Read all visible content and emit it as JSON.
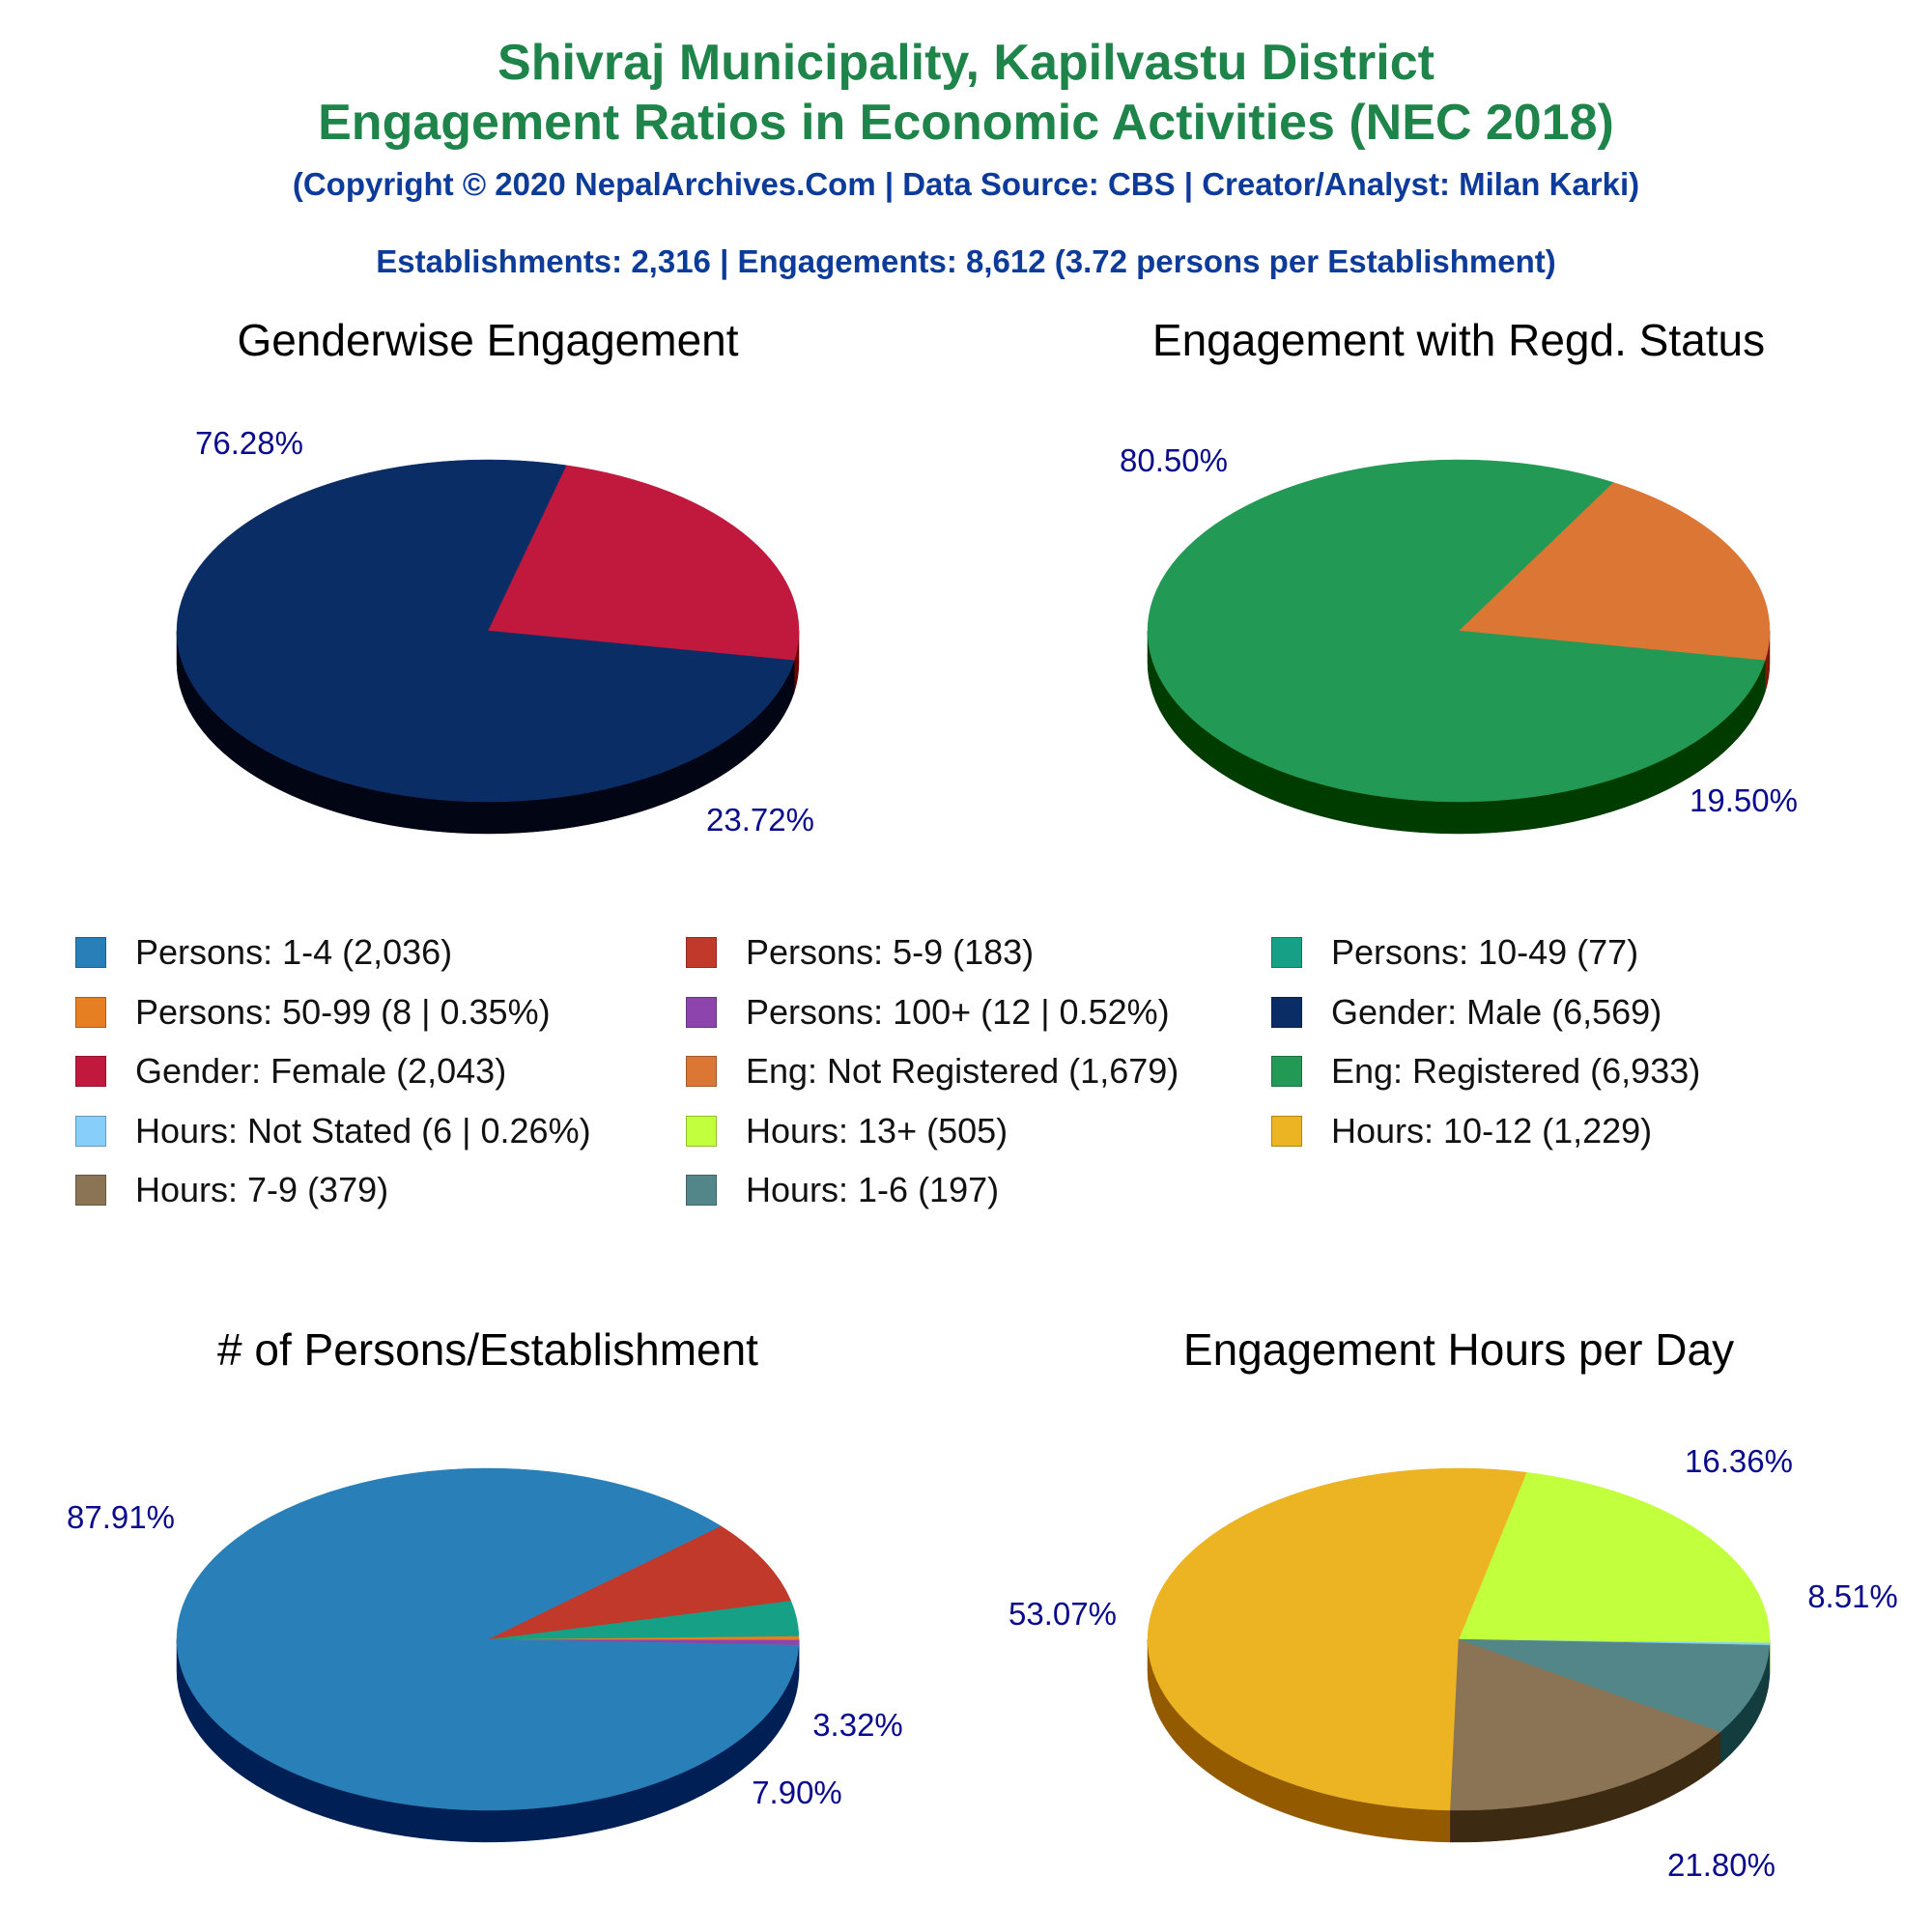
{
  "header": {
    "title_line1": "Shivraj Municipality, Kapilvastu District",
    "title_line2": "Engagement Ratios in Economic Activities (NEC 2018)",
    "subtitle": "(Copyright © 2020 NepalArchives.Com | Data Source: CBS | Creator/Analyst: Milan Karki)",
    "summary": "Establishments: 2,316 | Engagements: 8,612 (3.72 persons per Establishment)"
  },
  "chart_data": [
    {
      "type": "pie",
      "title": "Genderwise Engagement",
      "slices": [
        {
          "category": "Gender: Female",
          "count": 2043,
          "percent": 23.72,
          "label": "23.72%",
          "color": "#c0193d",
          "side": "#6b0000"
        },
        {
          "category": "Gender: Male",
          "count": 6569,
          "percent": 76.28,
          "label": "76.28%",
          "color": "#0b2d66",
          "side": "#020513"
        }
      ]
    },
    {
      "type": "pie",
      "title": "Engagement with Regd. Status",
      "slices": [
        {
          "category": "Eng: Not Registered",
          "count": 1679,
          "percent": 19.5,
          "label": "19.50%",
          "color": "#dc7635",
          "side": "#7b1a00"
        },
        {
          "category": "Eng: Registered",
          "count": 6933,
          "percent": 80.5,
          "label": "80.50%",
          "color": "#229954",
          "side": "#003b00"
        }
      ]
    },
    {
      "type": "pie",
      "title": "# of Persons/Establishment",
      "slices": [
        {
          "category": "Persons: 100+",
          "count": 12,
          "percent": 0.52,
          "label": "",
          "color": "#8e44ad",
          "side": "#3d0a55"
        },
        {
          "category": "Persons: 50-99",
          "count": 8,
          "percent": 0.35,
          "label": "",
          "color": "#e67e22",
          "side": "#7a2b00"
        },
        {
          "category": "Persons: 10-49",
          "count": 77,
          "percent": 3.32,
          "label": "3.32%",
          "color": "#16a085",
          "side": "#004533"
        },
        {
          "category": "Persons: 5-9",
          "count": 183,
          "percent": 7.9,
          "label": "7.90%",
          "color": "#c0392b",
          "side": "#6b0000"
        },
        {
          "category": "Persons: 1-4",
          "count": 2036,
          "percent": 87.91,
          "label": "87.91%",
          "color": "#2980b9",
          "side": "#002055"
        }
      ]
    },
    {
      "type": "pie",
      "title": "Engagement Hours per Day",
      "slices": [
        {
          "category": "Hours: Not Stated",
          "count": 6,
          "percent": 0.26,
          "label": "",
          "color": "#87cefa",
          "side": "#2c6fa3"
        },
        {
          "category": "Hours: 13+",
          "count": 505,
          "percent": 21.8,
          "label": "21.80%",
          "color": "#c2ff3d",
          "side": "#6aa600"
        },
        {
          "category": "Hours: 10-12",
          "count": 1229,
          "percent": 53.07,
          "label": "53.07%",
          "color": "#ecb322",
          "side": "#935a00"
        },
        {
          "category": "Hours: 7-9",
          "count": 379,
          "percent": 16.36,
          "label": "16.36%",
          "color": "#8b7355",
          "side": "#3d2a12"
        },
        {
          "category": "Hours: 1-6",
          "count": 197,
          "percent": 8.51,
          "label": "8.51%",
          "color": "#528688",
          "side": "#123c3e"
        }
      ]
    }
  ],
  "legend": {
    "items": [
      {
        "label": "Persons: 1-4 (2,036)",
        "color": "#2980b9"
      },
      {
        "label": "Persons: 5-9 (183)",
        "color": "#c0392b"
      },
      {
        "label": "Persons: 10-49 (77)",
        "color": "#16a085"
      },
      {
        "label": "Persons: 50-99 (8 | 0.35%)",
        "color": "#e67e22"
      },
      {
        "label": "Persons: 100+ (12 | 0.52%)",
        "color": "#8e44ad"
      },
      {
        "label": "Gender: Male (6,569)",
        "color": "#0b2d66"
      },
      {
        "label": "Gender: Female (2,043)",
        "color": "#c0193d"
      },
      {
        "label": "Eng: Not Registered (1,679)",
        "color": "#dc7635"
      },
      {
        "label": "Eng: Registered (6,933)",
        "color": "#229954"
      },
      {
        "label": "Hours: Not Stated (6 | 0.26%)",
        "color": "#87cefa"
      },
      {
        "label": "Hours: 13+ (505)",
        "color": "#c2ff3d"
      },
      {
        "label": "Hours: 10-12 (1,229)",
        "color": "#ecb322"
      },
      {
        "label": "Hours: 7-9 (379)",
        "color": "#8b7355"
      },
      {
        "label": "Hours: 1-6 (197)",
        "color": "#528688"
      }
    ]
  }
}
